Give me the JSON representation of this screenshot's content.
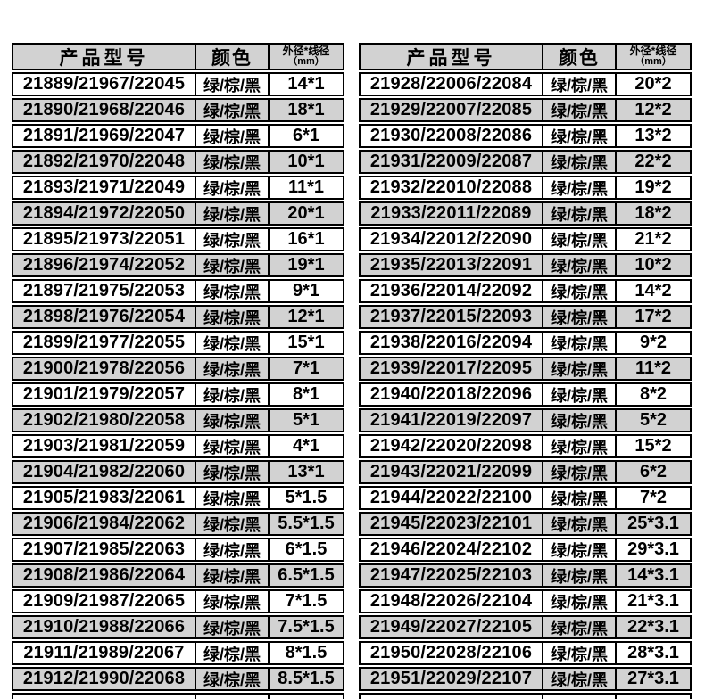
{
  "colors": {
    "background": "#ffffff",
    "row_shaded": "#d2d2d2",
    "row_plain": "#ffffff",
    "border": "#000000",
    "text": "#000000"
  },
  "header": {
    "model": "产品型号",
    "color": "颜色",
    "spec_line1": "外径*线径",
    "spec_line2": "（mm）"
  },
  "tables": [
    {
      "rows": [
        {
          "model": "21889/21967/22045",
          "color": "绿/棕/黑",
          "spec": "14*1"
        },
        {
          "model": "21890/21968/22046",
          "color": "绿/棕/黑",
          "spec": "18*1"
        },
        {
          "model": "21891/21969/22047",
          "color": "绿/棕/黑",
          "spec": "6*1"
        },
        {
          "model": "21892/21970/22048",
          "color": "绿/棕/黑",
          "spec": "10*1"
        },
        {
          "model": "21893/21971/22049",
          "color": "绿/棕/黑",
          "spec": "11*1"
        },
        {
          "model": "21894/21972/22050",
          "color": "绿/棕/黑",
          "spec": "20*1"
        },
        {
          "model": "21895/21973/22051",
          "color": "绿/棕/黑",
          "spec": "16*1"
        },
        {
          "model": "21896/21974/22052",
          "color": "绿/棕/黑",
          "spec": "19*1"
        },
        {
          "model": "21897/21975/22053",
          "color": "绿/棕/黑",
          "spec": "9*1"
        },
        {
          "model": "21898/21976/22054",
          "color": "绿/棕/黑",
          "spec": "12*1"
        },
        {
          "model": "21899/21977/22055",
          "color": "绿/棕/黑",
          "spec": "15*1"
        },
        {
          "model": "21900/21978/22056",
          "color": "绿/棕/黑",
          "spec": "7*1"
        },
        {
          "model": "21901/21979/22057",
          "color": "绿/棕/黑",
          "spec": "8*1"
        },
        {
          "model": "21902/21980/22058",
          "color": "绿/棕/黑",
          "spec": "5*1"
        },
        {
          "model": "21903/21981/22059",
          "color": "绿/棕/黑",
          "spec": "4*1"
        },
        {
          "model": "21904/21982/22060",
          "color": "绿/棕/黑",
          "spec": "13*1"
        },
        {
          "model": "21905/21983/22061",
          "color": "绿/棕/黑",
          "spec": "5*1.5"
        },
        {
          "model": "21906/21984/22062",
          "color": "绿/棕/黑",
          "spec": "5.5*1.5"
        },
        {
          "model": "21907/21985/22063",
          "color": "绿/棕/黑",
          "spec": "6*1.5"
        },
        {
          "model": "21908/21986/22064",
          "color": "绿/棕/黑",
          "spec": "6.5*1.5"
        },
        {
          "model": "21909/21987/22065",
          "color": "绿/棕/黑",
          "spec": "7*1.5"
        },
        {
          "model": "21910/21988/22066",
          "color": "绿/棕/黑",
          "spec": "7.5*1.5"
        },
        {
          "model": "21911/21989/22067",
          "color": "绿/棕/黑",
          "spec": "8*1.5"
        },
        {
          "model": "21912/21990/22068",
          "color": "绿/棕/黑",
          "spec": "8.5*1.5"
        }
      ]
    },
    {
      "rows": [
        {
          "model": "21928/22006/22084",
          "color": "绿/棕/黑",
          "spec": "20*2"
        },
        {
          "model": "21929/22007/22085",
          "color": "绿/棕/黑",
          "spec": "12*2"
        },
        {
          "model": "21930/22008/22086",
          "color": "绿/棕/黑",
          "spec": "13*2"
        },
        {
          "model": "21931/22009/22087",
          "color": "绿/棕/黑",
          "spec": "22*2"
        },
        {
          "model": "21932/22010/22088",
          "color": "绿/棕/黑",
          "spec": "19*2"
        },
        {
          "model": "21933/22011/22089",
          "color": "绿/棕/黑",
          "spec": "18*2"
        },
        {
          "model": "21934/22012/22090",
          "color": "绿/棕/黑",
          "spec": "21*2"
        },
        {
          "model": "21935/22013/22091",
          "color": "绿/棕/黑",
          "spec": "10*2"
        },
        {
          "model": "21936/22014/22092",
          "color": "绿/棕/黑",
          "spec": "14*2"
        },
        {
          "model": "21937/22015/22093",
          "color": "绿/棕/黑",
          "spec": "17*2"
        },
        {
          "model": "21938/22016/22094",
          "color": "绿/棕/黑",
          "spec": "9*2"
        },
        {
          "model": "21939/22017/22095",
          "color": "绿/棕/黑",
          "spec": "11*2"
        },
        {
          "model": "21940/22018/22096",
          "color": "绿/棕/黑",
          "spec": "8*2"
        },
        {
          "model": "21941/22019/22097",
          "color": "绿/棕/黑",
          "spec": "5*2"
        },
        {
          "model": "21942/22020/22098",
          "color": "绿/棕/黑",
          "spec": "15*2"
        },
        {
          "model": "21943/22021/22099",
          "color": "绿/棕/黑",
          "spec": "6*2"
        },
        {
          "model": "21944/22022/22100",
          "color": "绿/棕/黑",
          "spec": "7*2"
        },
        {
          "model": "21945/22023/22101",
          "color": "绿/棕/黑",
          "spec": "25*3.1"
        },
        {
          "model": "21946/22024/22102",
          "color": "绿/棕/黑",
          "spec": "29*3.1"
        },
        {
          "model": "21947/22025/22103",
          "color": "绿/棕/黑",
          "spec": "14*3.1"
        },
        {
          "model": "21948/22026/22104",
          "color": "绿/棕/黑",
          "spec": "21*3.1"
        },
        {
          "model": "21949/22027/22105",
          "color": "绿/棕/黑",
          "spec": "22*3.1"
        },
        {
          "model": "21950/22028/22106",
          "color": "绿/棕/黑",
          "spec": "28*3.1"
        },
        {
          "model": "21951/22029/22107",
          "color": "绿/棕/黑",
          "spec": "27*3.1"
        }
      ]
    }
  ]
}
